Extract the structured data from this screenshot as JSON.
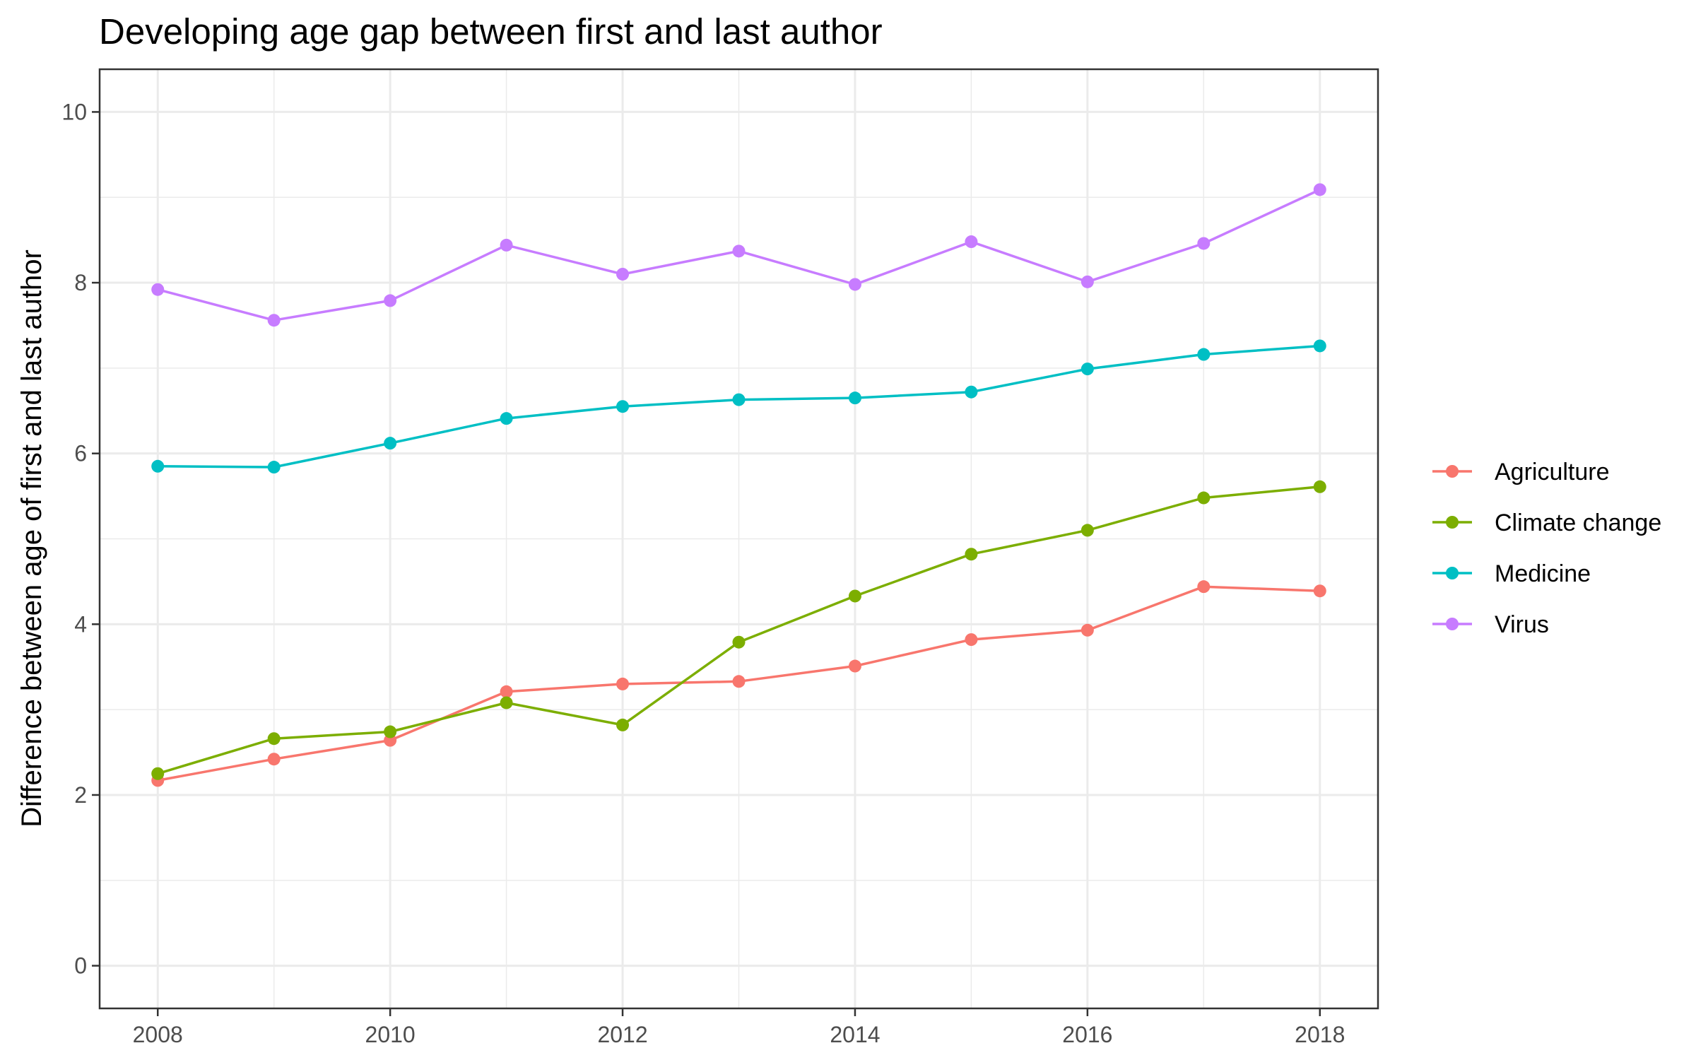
{
  "chart_data": {
    "type": "line",
    "title": "Developing age gap between first and last author",
    "xlabel": "",
    "ylabel": "Difference between age of first and last author",
    "xlim": [
      2007.5,
      2018.5
    ],
    "ylim": [
      -0.5,
      10.5
    ],
    "x_ticks": [
      2008,
      2010,
      2012,
      2014,
      2016,
      2018
    ],
    "y_ticks": [
      0,
      2,
      4,
      6,
      8,
      10
    ],
    "x_tick_labels": [
      "2008",
      "2010",
      "2012",
      "2014",
      "2016",
      "2018"
    ],
    "y_tick_labels": [
      "0",
      "2",
      "4",
      "6",
      "8",
      "10"
    ],
    "grid": true,
    "legend_position": "right",
    "x": [
      2008,
      2009,
      2010,
      2011,
      2012,
      2013,
      2014,
      2015,
      2016,
      2017,
      2018
    ],
    "series": [
      {
        "name": "Agriculture",
        "color": "#F8766D",
        "values": [
          2.17,
          2.42,
          2.64,
          3.21,
          3.3,
          3.33,
          3.51,
          3.82,
          3.93,
          4.44,
          4.39
        ]
      },
      {
        "name": "Climate change",
        "color": "#7CAE00",
        "values": [
          2.25,
          2.66,
          2.74,
          3.08,
          2.82,
          3.79,
          4.33,
          4.82,
          5.1,
          5.48,
          5.61
        ]
      },
      {
        "name": "Medicine",
        "color": "#00BFC4",
        "values": [
          5.85,
          5.84,
          6.12,
          6.41,
          6.55,
          6.63,
          6.65,
          6.72,
          6.99,
          7.16,
          7.26
        ]
      },
      {
        "name": "Virus",
        "color": "#C77CFF",
        "values": [
          7.92,
          7.56,
          7.79,
          8.44,
          8.1,
          8.37,
          7.98,
          8.48,
          8.01,
          8.46,
          9.09
        ]
      }
    ]
  }
}
